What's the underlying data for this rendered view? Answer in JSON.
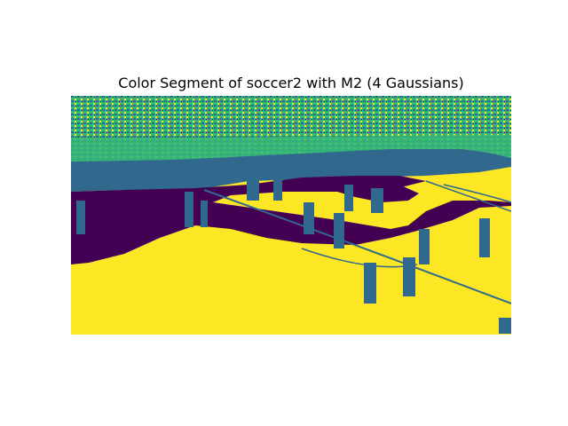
{
  "figure": {
    "title": "Color Segment of soccer2 with M2 (4 Gaussians)"
  },
  "palette": {
    "cluster_0": "#440154",
    "cluster_1": "#31688e",
    "cluster_2": "#35b779",
    "cluster_3": "#fde725"
  }
}
